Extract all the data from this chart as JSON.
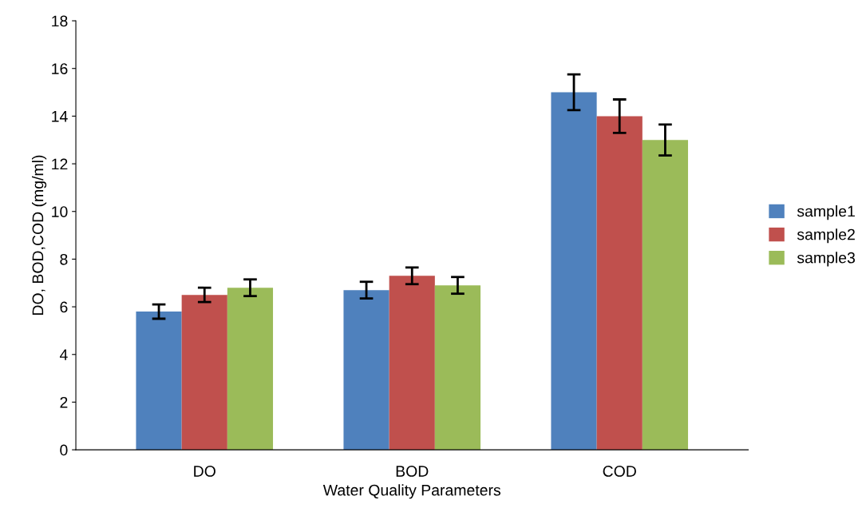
{
  "chart_data": {
    "type": "bar",
    "xlabel": "Water Quality Parameters",
    "ylabel": "DO, BOD,COD (mg/ml)",
    "categories": [
      "DO",
      "BOD",
      "COD"
    ],
    "series": [
      {
        "name": "sample1",
        "color": "#4f81bd",
        "values": [
          5.8,
          6.7,
          15
        ],
        "errors": [
          0.3,
          0.35,
          0.75
        ]
      },
      {
        "name": "sample2",
        "color": "#c0504d",
        "values": [
          6.5,
          7.3,
          14
        ],
        "errors": [
          0.3,
          0.35,
          0.7
        ]
      },
      {
        "name": "sample3",
        "color": "#9bbb59",
        "values": [
          6.8,
          6.9,
          13
        ],
        "errors": [
          0.35,
          0.35,
          0.65
        ]
      }
    ],
    "ylim": [
      0,
      18
    ],
    "yticks": [
      0,
      2,
      4,
      6,
      8,
      10,
      12,
      14,
      16,
      18
    ],
    "grid": false,
    "legend": "right"
  }
}
